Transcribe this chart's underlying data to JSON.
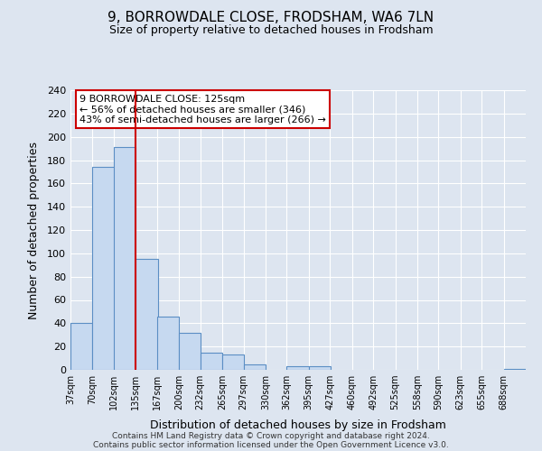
{
  "title": "9, BORROWDALE CLOSE, FRODSHAM, WA6 7LN",
  "subtitle": "Size of property relative to detached houses in Frodsham",
  "xlabel": "Distribution of detached houses by size in Frodsham",
  "ylabel": "Number of detached properties",
  "bar_labels": [
    "37sqm",
    "70sqm",
    "102sqm",
    "135sqm",
    "167sqm",
    "200sqm",
    "232sqm",
    "265sqm",
    "297sqm",
    "330sqm",
    "362sqm",
    "395sqm",
    "427sqm",
    "460sqm",
    "492sqm",
    "525sqm",
    "558sqm",
    "590sqm",
    "623sqm",
    "655sqm",
    "688sqm"
  ],
  "bar_values": [
    40,
    174,
    191,
    95,
    46,
    32,
    15,
    13,
    5,
    0,
    3,
    3,
    0,
    0,
    0,
    0,
    0,
    0,
    0,
    0,
    1
  ],
  "bar_color": "#c6d9f0",
  "bar_edge_color": "#5b8ec4",
  "vline_color": "#cc0000",
  "ylim": [
    0,
    240
  ],
  "yticks": [
    0,
    20,
    40,
    60,
    80,
    100,
    120,
    140,
    160,
    180,
    200,
    220,
    240
  ],
  "annotation_title": "9 BORROWDALE CLOSE: 125sqm",
  "annotation_line1": "← 56% of detached houses are smaller (346)",
  "annotation_line2": "43% of semi-detached houses are larger (266) →",
  "annotation_box_color": "#ffffff",
  "annotation_box_edge": "#cc0000",
  "footer1": "Contains HM Land Registry data © Crown copyright and database right 2024.",
  "footer2": "Contains public sector information licensed under the Open Government Licence v3.0.",
  "background_color": "#dde5f0",
  "plot_background": "#dde5f0",
  "grid_color": "#ffffff",
  "title_fontsize": 11,
  "subtitle_fontsize": 9,
  "bin_width": 33
}
